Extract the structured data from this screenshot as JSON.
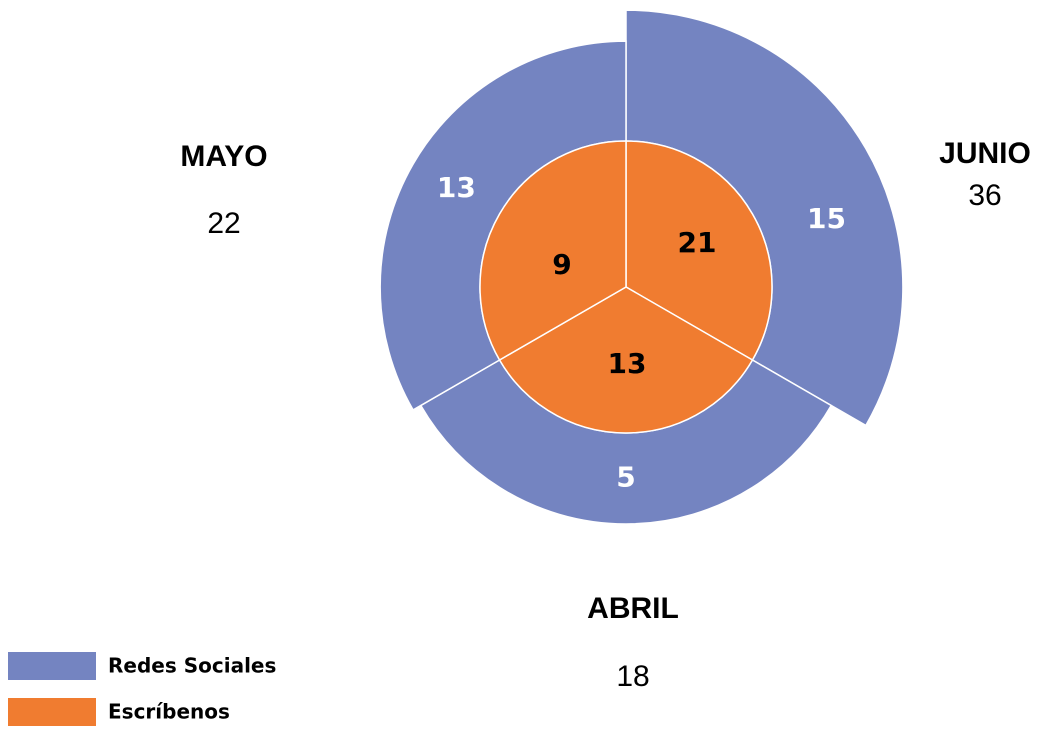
{
  "chart_data": {
    "type": "polar-stack",
    "categories": [
      "JUNIO",
      "ABRIL",
      "MAYO"
    ],
    "totals": [
      36,
      18,
      22
    ],
    "series": [
      {
        "name": "Escríbenos",
        "color": "#f07c30",
        "values": [
          21,
          13,
          9
        ]
      },
      {
        "name": "Redes Sociales",
        "color": "#7484c1",
        "values": [
          15,
          5,
          13
        ]
      }
    ],
    "legend": "bottom-left"
  }
}
